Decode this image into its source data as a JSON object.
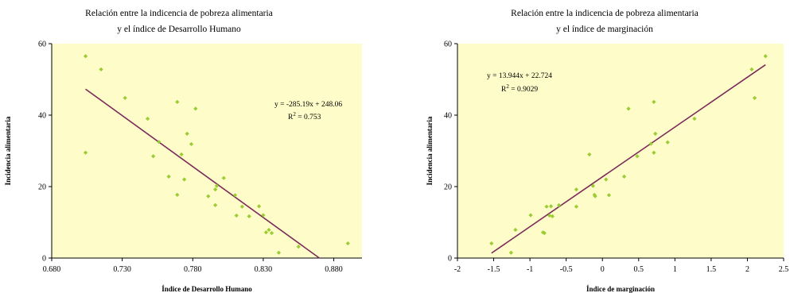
{
  "chart_data": [
    {
      "type": "scatter",
      "title": [
        "Relación entre la indicencia de pobreza alimentaria",
        "y el índice de Desarrollo Humano"
      ],
      "xlabel": "Índice de Desarrollo Humano",
      "ylabel": "Incidencia alimentaria",
      "xlim": [
        0.68,
        0.9
      ],
      "ylim": [
        0,
        60
      ],
      "x_ticks": [
        "0.680",
        "0.730",
        "0.780",
        "0.830",
        "0.880"
      ],
      "y_ticks": [
        "0",
        "20",
        "40",
        "60"
      ],
      "grid": false,
      "equation": "y = -285.19x + 248.06",
      "r2_label": "R",
      "r2_value": " = 0.753",
      "trendline": {
        "slope": -285.19,
        "intercept": 248.06,
        "x_start": 0.704,
        "x_end": 0.87
      },
      "colors": {
        "points": "#9acd32",
        "trendline": "#7b2a5a",
        "plot_bg": "#fefcc8"
      },
      "points": [
        {
          "x": 0.704,
          "y": 56.5
        },
        {
          "x": 0.704,
          "y": 29.5
        },
        {
          "x": 0.715,
          "y": 52.8
        },
        {
          "x": 0.732,
          "y": 44.8
        },
        {
          "x": 0.748,
          "y": 39.0
        },
        {
          "x": 0.752,
          "y": 28.5
        },
        {
          "x": 0.756,
          "y": 32.5
        },
        {
          "x": 0.763,
          "y": 22.8
        },
        {
          "x": 0.769,
          "y": 43.7
        },
        {
          "x": 0.769,
          "y": 17.7
        },
        {
          "x": 0.772,
          "y": 29.0
        },
        {
          "x": 0.774,
          "y": 22.0
        },
        {
          "x": 0.776,
          "y": 34.8
        },
        {
          "x": 0.779,
          "y": 31.9
        },
        {
          "x": 0.782,
          "y": 41.8
        },
        {
          "x": 0.791,
          "y": 17.3
        },
        {
          "x": 0.796,
          "y": 19.2
        },
        {
          "x": 0.797,
          "y": 20.2
        },
        {
          "x": 0.796,
          "y": 14.8
        },
        {
          "x": 0.802,
          "y": 22.4
        },
        {
          "x": 0.81,
          "y": 17.6
        },
        {
          "x": 0.811,
          "y": 11.9
        },
        {
          "x": 0.815,
          "y": 14.4
        },
        {
          "x": 0.82,
          "y": 11.7
        },
        {
          "x": 0.827,
          "y": 14.5
        },
        {
          "x": 0.83,
          "y": 12.0
        },
        {
          "x": 0.832,
          "y": 7.2
        },
        {
          "x": 0.834,
          "y": 7.9
        },
        {
          "x": 0.836,
          "y": 7.0
        },
        {
          "x": 0.841,
          "y": 1.5
        },
        {
          "x": 0.855,
          "y": 3.2
        },
        {
          "x": 0.89,
          "y": 4.1
        }
      ]
    },
    {
      "type": "scatter",
      "title": [
        "Relación entre la indicencia de pobreza alimentaria",
        "y el índice de marginación"
      ],
      "xlabel": "Índice de marginación",
      "ylabel": "Incidencia alimentaria",
      "xlim": [
        -2,
        2.5
      ],
      "ylim": [
        0,
        60
      ],
      "x_ticks": [
        "-2",
        "-1.5",
        "-1",
        "-0.5",
        "0",
        "0.5",
        "1",
        "1.5",
        "2",
        "2.5"
      ],
      "y_ticks": [
        "0",
        "20",
        "40",
        "60"
      ],
      "grid": false,
      "equation": "y = 13.944x + 22.724",
      "r2_label": "R",
      "r2_value": " = 0.9029",
      "trendline": {
        "slope": 13.944,
        "intercept": 22.724,
        "x_start": -1.53,
        "x_end": 2.25
      },
      "colors": {
        "points": "#9acd32",
        "trendline": "#7b2a5a",
        "plot_bg": "#fefcc8"
      },
      "points": [
        {
          "x": -1.53,
          "y": 4.1
        },
        {
          "x": -1.26,
          "y": 1.5
        },
        {
          "x": -1.2,
          "y": 7.9
        },
        {
          "x": -0.99,
          "y": 12.0
        },
        {
          "x": -0.82,
          "y": 7.2
        },
        {
          "x": -0.8,
          "y": 7.0
        },
        {
          "x": -0.77,
          "y": 14.4
        },
        {
          "x": -0.73,
          "y": 11.9
        },
        {
          "x": -0.71,
          "y": 14.5
        },
        {
          "x": -0.69,
          "y": 11.7
        },
        {
          "x": -0.6,
          "y": 14.8
        },
        {
          "x": -0.36,
          "y": 14.4
        },
        {
          "x": -0.36,
          "y": 19.2
        },
        {
          "x": -0.18,
          "y": 29.0
        },
        {
          "x": -0.13,
          "y": 20.2
        },
        {
          "x": -0.11,
          "y": 17.7
        },
        {
          "x": -0.1,
          "y": 17.3
        },
        {
          "x": 0.05,
          "y": 22.0
        },
        {
          "x": 0.09,
          "y": 17.6
        },
        {
          "x": 0.3,
          "y": 22.8
        },
        {
          "x": 0.36,
          "y": 41.8
        },
        {
          "x": 0.48,
          "y": 28.5
        },
        {
          "x": 0.67,
          "y": 32.0
        },
        {
          "x": 0.71,
          "y": 29.5
        },
        {
          "x": 0.71,
          "y": 43.7
        },
        {
          "x": 0.73,
          "y": 34.8
        },
        {
          "x": 0.9,
          "y": 32.4
        },
        {
          "x": 1.27,
          "y": 39.0
        },
        {
          "x": 2.06,
          "y": 52.8
        },
        {
          "x": 2.1,
          "y": 44.8
        },
        {
          "x": 2.25,
          "y": 56.5
        }
      ]
    }
  ]
}
